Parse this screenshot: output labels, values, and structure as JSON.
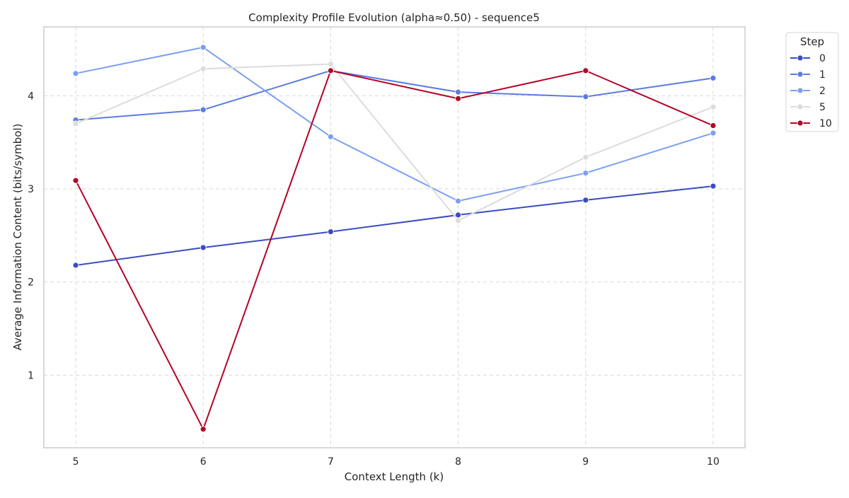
{
  "chart_data": {
    "type": "line",
    "title": "Complexity Profile Evolution (alpha≈0.50) - sequence5",
    "xlabel": "Context Length (k)",
    "ylabel": "Average Information Content (bits/symbol)",
    "x": [
      5,
      6,
      7,
      8,
      9,
      10
    ],
    "xlim": [
      4.75,
      10.25
    ],
    "ylim": [
      0.22,
      4.74
    ],
    "xticks": [
      "5",
      "6",
      "7",
      "8",
      "9",
      "10"
    ],
    "yticks": [
      "1",
      "2",
      "3",
      "4"
    ],
    "grid": true,
    "legend": {
      "title": "Step",
      "placement": "outside-top-right"
    },
    "series": [
      {
        "name": "0",
        "color": "#3b4cc0",
        "values": [
          2.18,
          2.37,
          2.54,
          2.72,
          2.88,
          3.03
        ]
      },
      {
        "name": "1",
        "color": "#5b7be0",
        "values": [
          3.74,
          3.85,
          4.27,
          4.04,
          3.99,
          4.19
        ]
      },
      {
        "name": "2",
        "color": "#7b9ff2",
        "values": [
          4.24,
          4.52,
          3.56,
          2.87,
          3.17,
          3.6
        ]
      },
      {
        "name": "5",
        "color": "#dcdcdc",
        "values": [
          3.7,
          4.29,
          4.34,
          2.66,
          3.34,
          3.88
        ]
      },
      {
        "name": "10",
        "color": "#b40426",
        "values": [
          3.09,
          0.42,
          4.27,
          3.97,
          4.27,
          3.68
        ]
      }
    ]
  }
}
